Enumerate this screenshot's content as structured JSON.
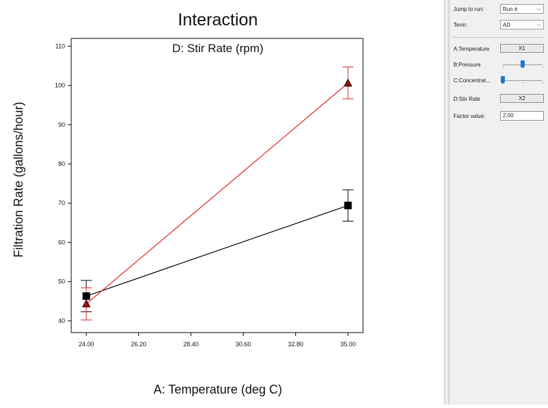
{
  "chart_data": {
    "type": "line",
    "title": "Interaction",
    "subtitle": "D: Stir Rate (rpm)",
    "xlabel": "A: Temperature (deg C)",
    "ylabel": "Filtration Rate (gallons/hour)",
    "xlim": [
      24.0,
      35.0
    ],
    "ylim": [
      37,
      112
    ],
    "x_ticks": [
      "24.00",
      "26.20",
      "28.40",
      "30.60",
      "32.80",
      "35.00"
    ],
    "x_tick_values": [
      24.0,
      26.2,
      28.4,
      30.6,
      32.8,
      35.0
    ],
    "y_ticks": [
      "40",
      "50",
      "60",
      "70",
      "80",
      "90",
      "100",
      "110"
    ],
    "y_tick_values": [
      40,
      50,
      60,
      70,
      80,
      90,
      100,
      110
    ],
    "series": [
      {
        "marker": "square",
        "color": "#000000",
        "x": [
          24.0,
          35.0
        ],
        "y": [
          46.3,
          69.4
        ],
        "err_low": [
          42.3,
          65.4
        ],
        "err_high": [
          50.3,
          73.4
        ]
      },
      {
        "marker": "triangle",
        "color": "#e02020",
        "x": [
          24.0,
          35.0
        ],
        "y": [
          44.3,
          100.6
        ],
        "err_low": [
          40.2,
          96.6
        ],
        "err_high": [
          48.4,
          104.7
        ]
      }
    ]
  },
  "panel": {
    "jump_label": "Jump to run:",
    "jump_value": "Run #",
    "term_label": "Term:",
    "term_value": "AD",
    "factors": [
      {
        "label": "A:Temperature",
        "kind": "axis",
        "value": "X1"
      },
      {
        "label": "B:Pressure",
        "kind": "slider",
        "level": 0.5
      },
      {
        "label": "C:Concentrat...",
        "kind": "slider",
        "level": 0.0
      },
      {
        "label": "D:Stir Rate",
        "kind": "axis",
        "value": "X2"
      }
    ],
    "factor_value_label": "Factor value:",
    "factor_value": "2.00"
  }
}
